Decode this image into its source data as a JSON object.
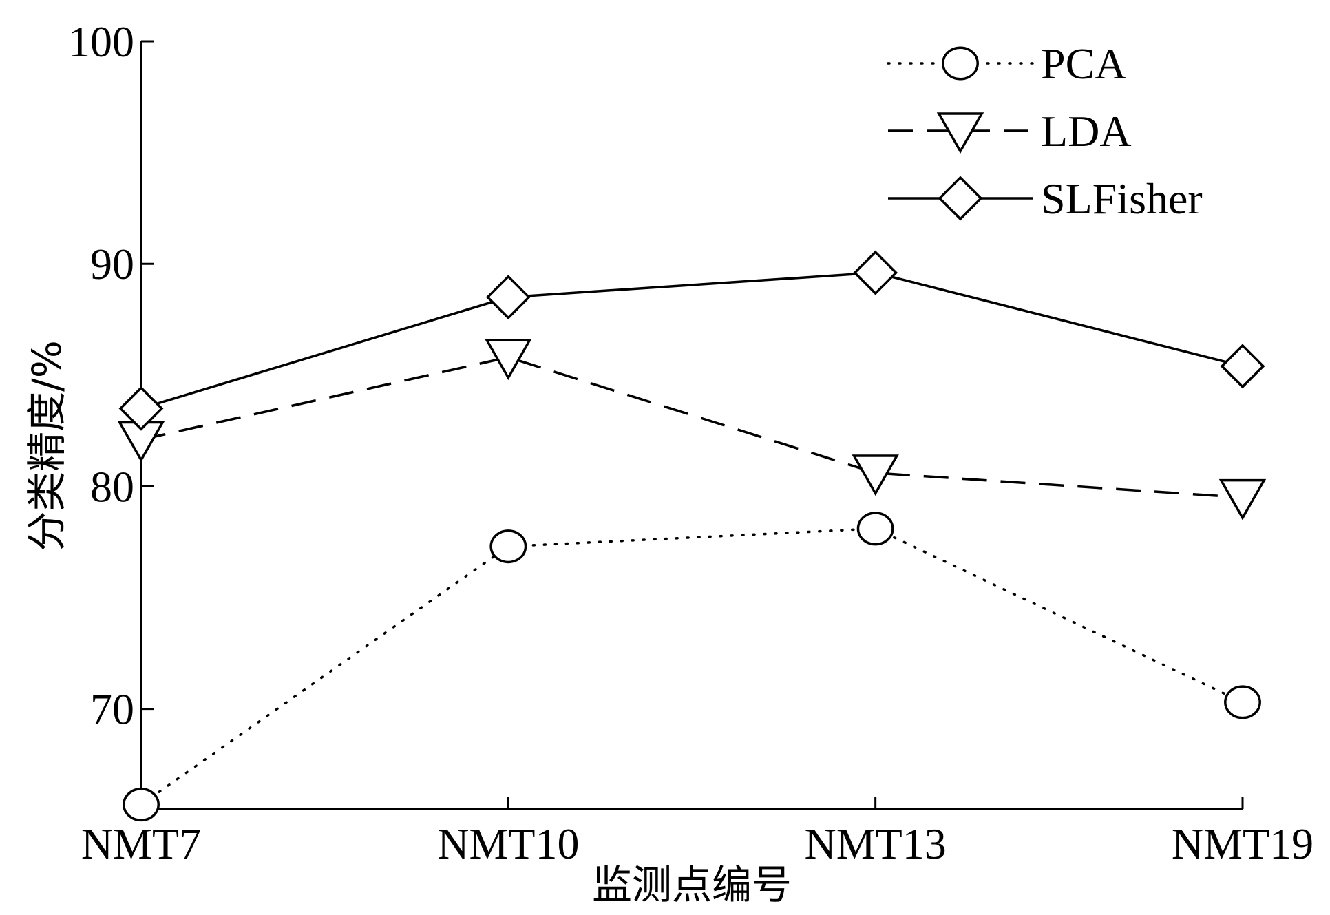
{
  "chart_data": {
    "type": "line",
    "title": "",
    "xlabel": "监测点编号",
    "ylabel": "分类精度/%",
    "categories": [
      "NMT7",
      "NMT10",
      "NMT13",
      "NMT19"
    ],
    "ylim": [
      65.5,
      100
    ],
    "yticks": [
      70,
      80,
      90,
      100
    ],
    "grid": false,
    "legend": "top-right",
    "series": [
      {
        "name": "PCA",
        "values": [
          65.7,
          77.3,
          78.1,
          70.3
        ],
        "line_style": "dotted",
        "marker": "circle"
      },
      {
        "name": "LDA",
        "values": [
          82.1,
          85.8,
          80.6,
          79.5
        ],
        "line_style": "dashed",
        "marker": "triangle-down"
      },
      {
        "name": "SLFisher",
        "values": [
          83.5,
          88.5,
          89.6,
          85.4
        ],
        "line_style": "solid",
        "marker": "diamond"
      }
    ]
  }
}
